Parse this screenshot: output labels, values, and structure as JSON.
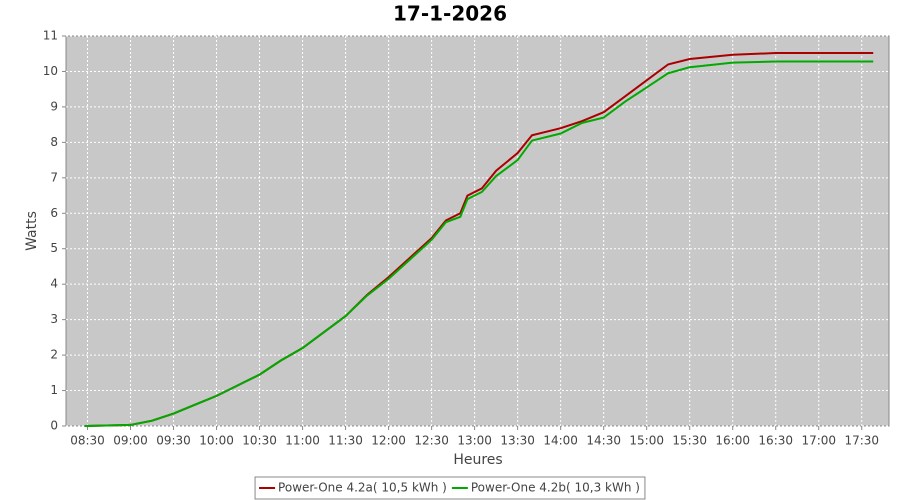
{
  "chart_data": {
    "type": "line",
    "title": "17-1-2026",
    "x_label": "Heures",
    "y_label": "Watts",
    "x": [
      508,
      540,
      555,
      570,
      585,
      600,
      615,
      630,
      645,
      660,
      675,
      690,
      705,
      720,
      735,
      750,
      760,
      770,
      775,
      785,
      795,
      810,
      820,
      840,
      855,
      870,
      885,
      900,
      915,
      930,
      960,
      990,
      1020,
      1058
    ],
    "series": [
      {
        "name": "Power-One 4.2a( 10,5 kWh )",
        "color": "#aa0000",
        "values": [
          0,
          0.03,
          0.15,
          0.35,
          0.6,
          0.85,
          1.15,
          1.45,
          1.85,
          2.2,
          2.65,
          3.1,
          3.7,
          4.2,
          4.75,
          5.3,
          5.8,
          6.0,
          6.5,
          6.7,
          7.2,
          7.7,
          8.2,
          8.4,
          8.6,
          8.85,
          9.3,
          9.75,
          10.2,
          10.35,
          10.47,
          10.52,
          10.52,
          10.52
        ]
      },
      {
        "name": "Power-One 4.2b( 10,3 kWh )",
        "color": "#00aa00",
        "values": [
          0,
          0.03,
          0.15,
          0.35,
          0.6,
          0.85,
          1.15,
          1.45,
          1.85,
          2.2,
          2.65,
          3.1,
          3.68,
          4.15,
          4.7,
          5.25,
          5.75,
          5.9,
          6.4,
          6.6,
          7.05,
          7.5,
          8.05,
          8.25,
          8.55,
          8.7,
          9.15,
          9.55,
          9.95,
          10.12,
          10.25,
          10.28,
          10.28,
          10.28
        ]
      }
    ],
    "xlim": [
      495,
      1069
    ],
    "xticks": [
      {
        "value": 510,
        "label": "08:30"
      },
      {
        "value": 540,
        "label": "09:00"
      },
      {
        "value": 570,
        "label": "09:30"
      },
      {
        "value": 600,
        "label": "10:00"
      },
      {
        "value": 630,
        "label": "10:30"
      },
      {
        "value": 660,
        "label": "11:00"
      },
      {
        "value": 690,
        "label": "11:30"
      },
      {
        "value": 720,
        "label": "12:00"
      },
      {
        "value": 750,
        "label": "12:30"
      },
      {
        "value": 780,
        "label": "13:00"
      },
      {
        "value": 810,
        "label": "13:30"
      },
      {
        "value": 840,
        "label": "14:00"
      },
      {
        "value": 870,
        "label": "14:30"
      },
      {
        "value": 900,
        "label": "15:00"
      },
      {
        "value": 930,
        "label": "15:30"
      },
      {
        "value": 960,
        "label": "16:00"
      },
      {
        "value": 990,
        "label": "16:30"
      },
      {
        "value": 1020,
        "label": "17:00"
      },
      {
        "value": 1050,
        "label": "17:30"
      }
    ],
    "ylim": [
      0,
      11
    ],
    "yticks": [
      0,
      1,
      2,
      3,
      4,
      5,
      6,
      7,
      8,
      9,
      10,
      11
    ],
    "grid": true,
    "legend": "bottom",
    "plot_background": "#c8c8c8"
  }
}
